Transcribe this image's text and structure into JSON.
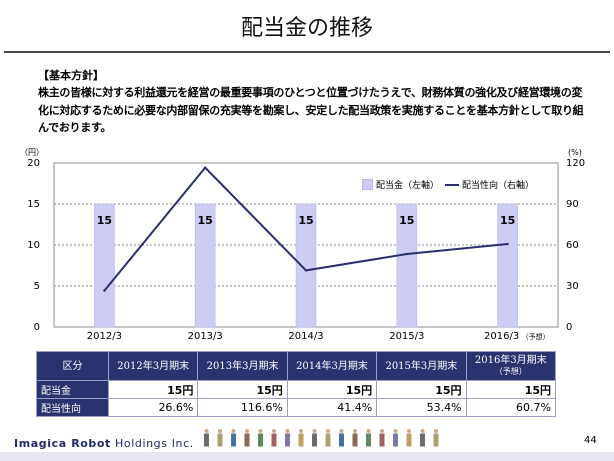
{
  "title": "配当金の推移",
  "policy": {
    "heading": "【基本方針】",
    "body": "株主の皆様に対する利益還元を経営の最重要事項のひとつと位置づけたうえで、財務体質の強化及び経営環境の変化に対応するために必要な内部留保の充実等を勘案し、安定した配当政策を実施することを基本方針として取り組んでおります。"
  },
  "chart_data": {
    "type": "bar",
    "categories": [
      "2012/3",
      "2013/3",
      "2014/3",
      "2015/3",
      "2016/3"
    ],
    "category_notes": [
      "",
      "",
      "",
      "",
      "（予想）"
    ],
    "series": [
      {
        "name": "配当金（左軸）",
        "values": [
          15,
          15,
          15,
          15,
          15
        ],
        "axis": "left",
        "type": "bar",
        "color": "#ccccf5",
        "data_labels": [
          "15",
          "15",
          "15",
          "15",
          "15"
        ]
      },
      {
        "name": "配当性向（右軸）",
        "values": [
          26.6,
          116.6,
          41.4,
          53.4,
          60.7
        ],
        "axis": "right",
        "type": "line",
        "color": "#2a2f6e"
      }
    ],
    "left_axis": {
      "unit": "（円）",
      "ylim": [
        0,
        20
      ],
      "ticks": [
        "0",
        "5",
        "10",
        "15",
        "20"
      ]
    },
    "right_axis": {
      "unit": "(%)",
      "ylim": [
        0,
        120
      ],
      "ticks": [
        "0",
        "30",
        "60",
        "90",
        "120"
      ]
    },
    "grid": true,
    "legend_position": "top-right"
  },
  "table": {
    "header_label": "区分",
    "columns": [
      {
        "label": "2012年3月期末",
        "note": ""
      },
      {
        "label": "2013年3月期末",
        "note": ""
      },
      {
        "label": "2014年3月期末",
        "note": ""
      },
      {
        "label": "2015年3月期末",
        "note": ""
      },
      {
        "label": "2016年3月期末",
        "note": "（予想）"
      }
    ],
    "rows": [
      {
        "label": "配当金",
        "values": [
          "15円",
          "15円",
          "15円",
          "15円",
          "15円"
        ]
      },
      {
        "label": "配当性向",
        "values": [
          "26.6%",
          "116.6%",
          "41.4%",
          "53.4%",
          "60.7%"
        ]
      }
    ]
  },
  "footer": {
    "company_bold": "Imagica Robot",
    "company_rest": " Holdings Inc.",
    "page": "44"
  },
  "colors": {
    "navy": "#2b3270",
    "bar": "#ccccf5",
    "line": "#2a2f6e"
  }
}
